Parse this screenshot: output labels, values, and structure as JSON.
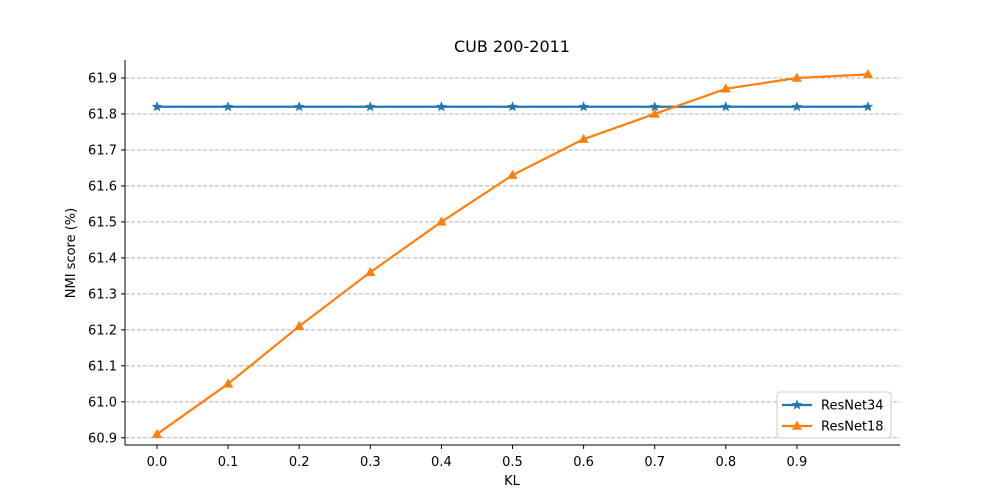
{
  "chart_data": {
    "type": "line",
    "title": "CUB 200-2011",
    "xlabel": "KL",
    "ylabel": "NMI score (%)",
    "xlim": [
      -0.045,
      1.045
    ],
    "ylim": [
      60.88,
      61.95
    ],
    "x_ticks": [
      "0.0",
      "0.1",
      "0.2",
      "0.3",
      "0.4",
      "0.5",
      "0.6",
      "0.7",
      "0.8",
      "0.9"
    ],
    "y_ticks": [
      "60.9",
      "61.0",
      "61.1",
      "61.2",
      "61.3",
      "61.4",
      "61.5",
      "61.6",
      "61.7",
      "61.8",
      "61.9"
    ],
    "grid": "horizontal dashed",
    "legend_position": "lower right",
    "x": [
      0.0,
      0.1,
      0.2,
      0.3,
      0.4,
      0.5,
      0.6,
      0.7,
      0.8,
      0.9,
      1.0
    ],
    "series": [
      {
        "name": "ResNet34",
        "color": "#1f77b4",
        "marker": "star",
        "values": [
          61.82,
          61.82,
          61.82,
          61.82,
          61.82,
          61.82,
          61.82,
          61.82,
          61.82,
          61.82,
          61.82
        ]
      },
      {
        "name": "ResNet18",
        "color": "#ff7f0e",
        "marker": "triangle",
        "values": [
          60.91,
          61.05,
          61.21,
          61.36,
          61.5,
          61.63,
          61.73,
          61.8,
          61.87,
          61.9,
          61.91
        ]
      }
    ]
  }
}
